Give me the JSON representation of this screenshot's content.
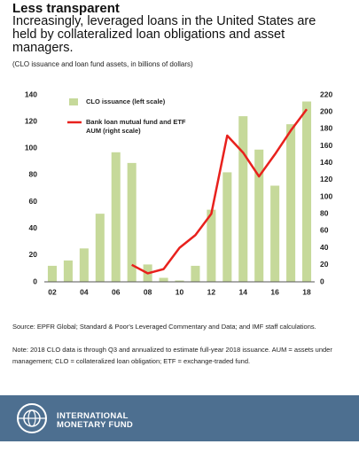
{
  "title": "Less transparent",
  "subtitle": "Increasingly, leveraged loans in the United States are held by collateralized loan obligations and asset managers.",
  "units_note": "(CLO issuance and loan fund assets, in billions of dollars)",
  "chart_data": {
    "type": "bar",
    "categories": [
      "02",
      null,
      "04",
      null,
      "06",
      null,
      "08",
      null,
      "10",
      null,
      "12",
      null,
      "14",
      null,
      "16",
      null,
      "18"
    ],
    "series": [
      {
        "name": "CLO issuance (left scale)",
        "type": "bar",
        "color": "#c6d99a",
        "values": [
          12,
          16,
          25,
          51,
          97,
          89,
          13,
          3,
          1,
          12,
          54,
          82,
          124,
          99,
          72,
          118,
          135
        ]
      },
      {
        "name": "Bank loan mutual fund and ETF AUM (right scale)",
        "type": "line",
        "axis": "y2",
        "color": "#e8211d",
        "values": [
          null,
          null,
          null,
          null,
          null,
          20,
          10,
          15,
          40,
          55,
          80,
          172,
          152,
          124,
          150,
          178,
          203
        ]
      }
    ],
    "ylim": [
      0,
      140
    ],
    "yticks": [
      0,
      20,
      40,
      60,
      80,
      100,
      120,
      140
    ],
    "y2lim": [
      0,
      220
    ],
    "y2ticks": [
      0,
      20,
      40,
      60,
      80,
      100,
      120,
      140,
      160,
      180,
      200,
      220
    ],
    "grid": false
  },
  "source": "Source: EPFR Global; Standard & Poor's Leveraged Commentary and Data; and IMF staff calculations.",
  "note": "Note: 2018 CLO data is through Q3 and annualized to estimate full-year 2018 issuance. AUM = assets under management; CLO = collateralized loan obligation; ETF = exchange-traded fund.",
  "footer": {
    "org_lines": [
      "INTERNATIONAL",
      "MONETARY FUND"
    ]
  }
}
